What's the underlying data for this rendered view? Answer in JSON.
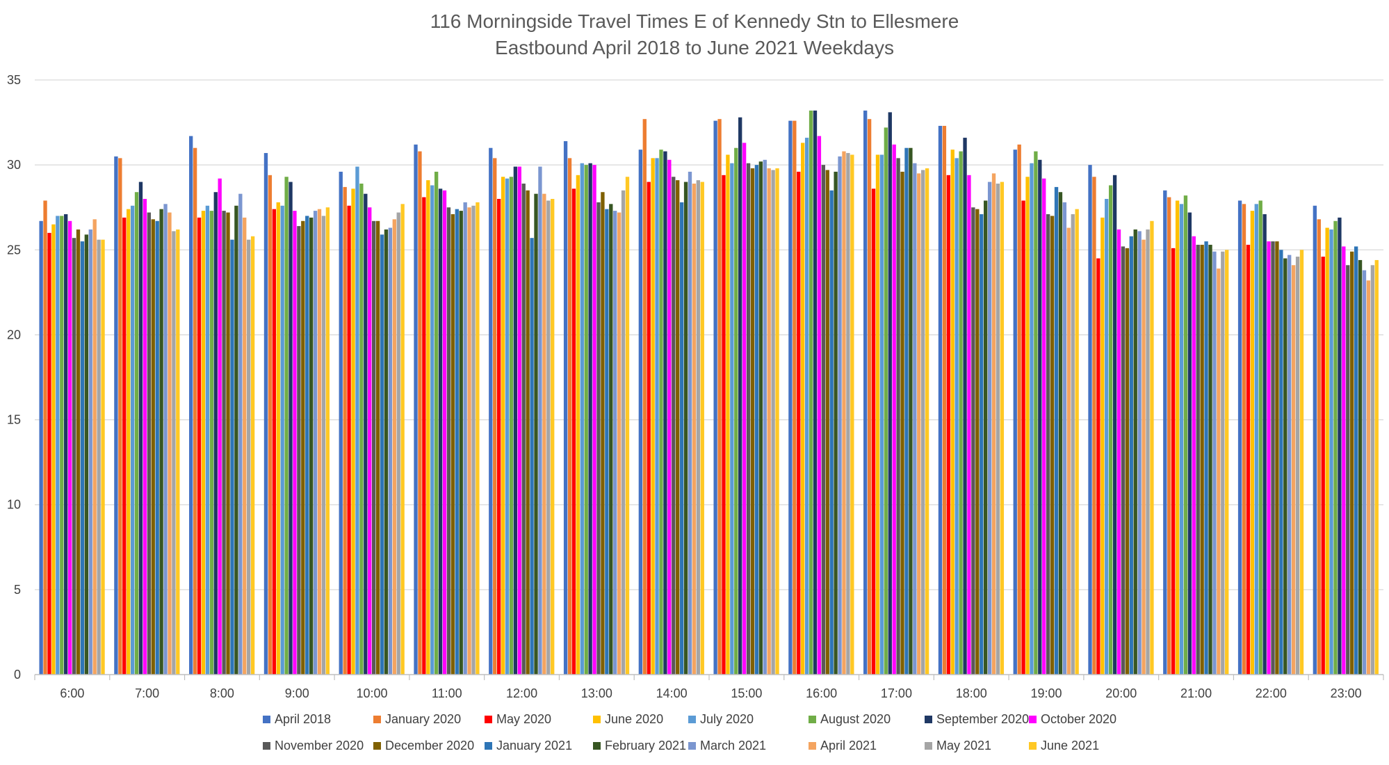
{
  "chart_data": {
    "type": "bar",
    "title": [
      "116 Morningside Travel Times E of Kennedy Stn to Ellesmere",
      "Eastbound April 2018 to June 2021 Weekdays"
    ],
    "xlabel": "",
    "ylabel": "",
    "ylim": [
      0,
      35
    ],
    "yticks": [
      0,
      5,
      10,
      15,
      20,
      25,
      30,
      35
    ],
    "grid": true,
    "legend_position": "bottom",
    "categories": [
      "6:00",
      "7:00",
      "8:00",
      "9:00",
      "10:00",
      "11:00",
      "12:00",
      "13:00",
      "14:00",
      "15:00",
      "16:00",
      "17:00",
      "18:00",
      "19:00",
      "20:00",
      "21:00",
      "22:00",
      "23:00"
    ],
    "series": [
      {
        "name": "April 2018",
        "color": "#4472C4",
        "values": [
          26.7,
          30.5,
          31.7,
          30.7,
          29.6,
          31.2,
          31.0,
          31.4,
          30.9,
          32.6,
          32.6,
          33.2,
          32.3,
          30.9,
          30.0,
          28.5,
          27.9,
          27.6
        ]
      },
      {
        "name": "January 2020",
        "color": "#ED7D31",
        "values": [
          27.9,
          30.4,
          31.0,
          29.4,
          28.7,
          30.8,
          30.4,
          30.4,
          32.7,
          32.7,
          32.6,
          32.7,
          32.3,
          31.2,
          29.3,
          28.1,
          27.7,
          26.8
        ]
      },
      {
        "name": "May 2020",
        "color": "#FF0000",
        "values": [
          26.0,
          26.9,
          26.9,
          27.4,
          27.6,
          28.1,
          28.0,
          28.6,
          29.0,
          29.4,
          29.6,
          28.6,
          29.4,
          27.9,
          24.5,
          25.1,
          25.3,
          24.6
        ]
      },
      {
        "name": "June 2020",
        "color": "#FFC000",
        "values": [
          26.5,
          27.4,
          27.3,
          27.8,
          28.6,
          29.1,
          29.3,
          29.4,
          30.4,
          30.6,
          31.3,
          30.6,
          30.9,
          29.3,
          26.9,
          27.9,
          27.3,
          26.3
        ]
      },
      {
        "name": "July 2020",
        "color": "#5B9BD5",
        "values": [
          27.0,
          27.6,
          27.6,
          27.6,
          29.9,
          28.8,
          29.2,
          30.1,
          30.4,
          30.1,
          31.6,
          30.6,
          30.4,
          30.1,
          28.0,
          27.7,
          27.7,
          26.2
        ]
      },
      {
        "name": "August 2020",
        "color": "#70AD47",
        "values": [
          27.0,
          28.4,
          27.3,
          29.3,
          28.9,
          29.6,
          29.3,
          30.0,
          30.9,
          31.0,
          33.2,
          32.2,
          30.8,
          30.8,
          28.8,
          28.2,
          27.9,
          26.7
        ]
      },
      {
        "name": "September 2020",
        "color": "#1F3864",
        "values": [
          27.1,
          29.0,
          28.4,
          29.0,
          28.3,
          28.6,
          29.9,
          30.1,
          30.8,
          32.8,
          33.2,
          33.1,
          31.6,
          30.3,
          29.4,
          27.2,
          27.1,
          26.9
        ]
      },
      {
        "name": "October 2020",
        "color": "#FF00FF",
        "values": [
          26.7,
          28.0,
          29.2,
          27.3,
          27.5,
          28.5,
          29.9,
          30.0,
          30.3,
          31.3,
          31.7,
          31.2,
          29.4,
          29.2,
          26.2,
          25.8,
          25.5,
          25.2
        ]
      },
      {
        "name": "November 2020",
        "color": "#595959",
        "values": [
          25.7,
          27.2,
          27.3,
          26.4,
          26.7,
          27.5,
          28.9,
          27.8,
          29.3,
          30.1,
          30.0,
          30.4,
          27.5,
          27.1,
          25.2,
          25.3,
          25.5,
          24.1
        ]
      },
      {
        "name": "December 2020",
        "color": "#7F6000",
        "values": [
          26.2,
          26.8,
          27.2,
          26.7,
          26.7,
          27.1,
          28.5,
          28.4,
          29.1,
          29.8,
          29.7,
          29.6,
          27.4,
          27.0,
          25.1,
          25.3,
          25.5,
          24.9
        ]
      },
      {
        "name": "January 2021",
        "color": "#2E75B6",
        "values": [
          25.5,
          26.7,
          25.6,
          27.0,
          25.9,
          27.4,
          25.7,
          27.4,
          27.8,
          30.0,
          28.5,
          31.0,
          27.1,
          28.7,
          25.8,
          25.5,
          25.0,
          25.2
        ]
      },
      {
        "name": "February 2021",
        "color": "#375623",
        "values": [
          25.9,
          27.4,
          27.6,
          26.9,
          26.2,
          27.3,
          28.3,
          27.7,
          29.0,
          30.2,
          29.6,
          31.0,
          27.9,
          28.4,
          26.2,
          25.3,
          24.5,
          24.4
        ]
      },
      {
        "name": "March 2021",
        "color": "#7B96D0",
        "values": [
          26.2,
          27.7,
          28.3,
          27.3,
          26.3,
          27.8,
          29.9,
          27.3,
          29.6,
          30.3,
          30.5,
          30.1,
          29.0,
          27.8,
          26.1,
          24.9,
          24.7,
          23.8
        ]
      },
      {
        "name": "April 2021",
        "color": "#F4A460",
        "values": [
          26.8,
          27.2,
          26.9,
          27.4,
          26.8,
          27.5,
          28.3,
          27.2,
          28.9,
          29.8,
          30.8,
          29.5,
          29.5,
          26.3,
          25.6,
          23.9,
          24.1,
          23.2
        ]
      },
      {
        "name": "May 2021",
        "color": "#A5A5A5",
        "values": [
          25.6,
          26.1,
          25.6,
          27.0,
          27.2,
          27.6,
          27.9,
          28.5,
          29.1,
          29.7,
          30.7,
          29.7,
          28.9,
          27.1,
          26.2,
          24.9,
          24.6,
          24.1
        ]
      },
      {
        "name": "June 2021",
        "color": "#FFC824",
        "values": [
          25.6,
          26.2,
          25.8,
          27.5,
          27.7,
          27.8,
          28.0,
          29.3,
          29.0,
          29.8,
          30.6,
          29.8,
          29.0,
          27.4,
          26.7,
          25.0,
          25.0,
          24.4
        ]
      }
    ]
  }
}
